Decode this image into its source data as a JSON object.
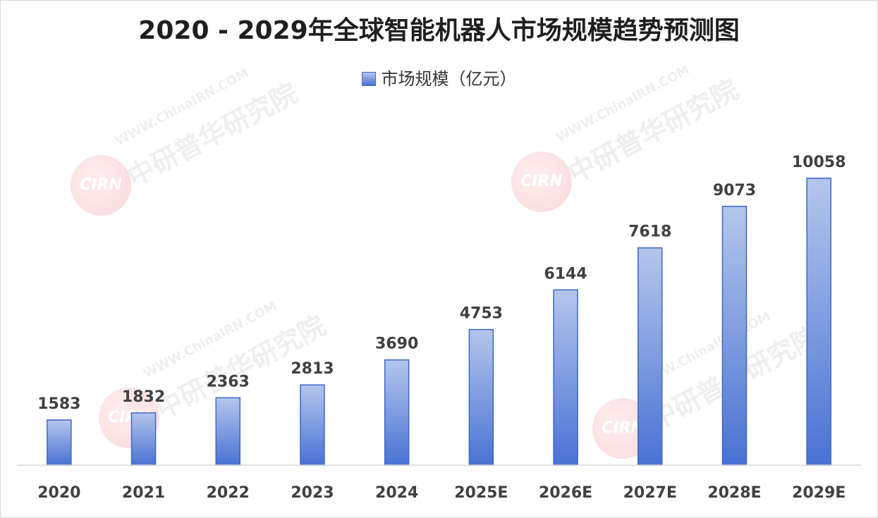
{
  "chart_data": {
    "type": "bar",
    "title": "2020 - 2029年全球智能机器人市场规模趋势预测图",
    "categories": [
      "2020",
      "2021",
      "2022",
      "2023",
      "2024",
      "2025E",
      "2026E",
      "2027E",
      "2028E",
      "2029E"
    ],
    "series": [
      {
        "name": "市场规模（亿元）",
        "values": [
          1583,
          1832,
          2363,
          2813,
          3690,
          4753,
          6144,
          7618,
          9073,
          10058
        ]
      }
    ],
    "value_labels": [
      "1583",
      "1832",
      "2363",
      "2813",
      "3690",
      "4753",
      "6144",
      "7618",
      "9073",
      "10058"
    ],
    "ylim": [
      0,
      10500
    ],
    "grid": false,
    "legend_position": "top-center",
    "colors": {
      "bar_top": "#b4c6ec",
      "bar_bottom": "#4a72d3",
      "bar_border": "#3f67c9",
      "axis": "#d9d9d9",
      "label": "#404040"
    }
  },
  "watermark": {
    "logo": "CIRN",
    "url": "WWW.ChinaIRN.COM",
    "name": "中研普华研究院"
  }
}
